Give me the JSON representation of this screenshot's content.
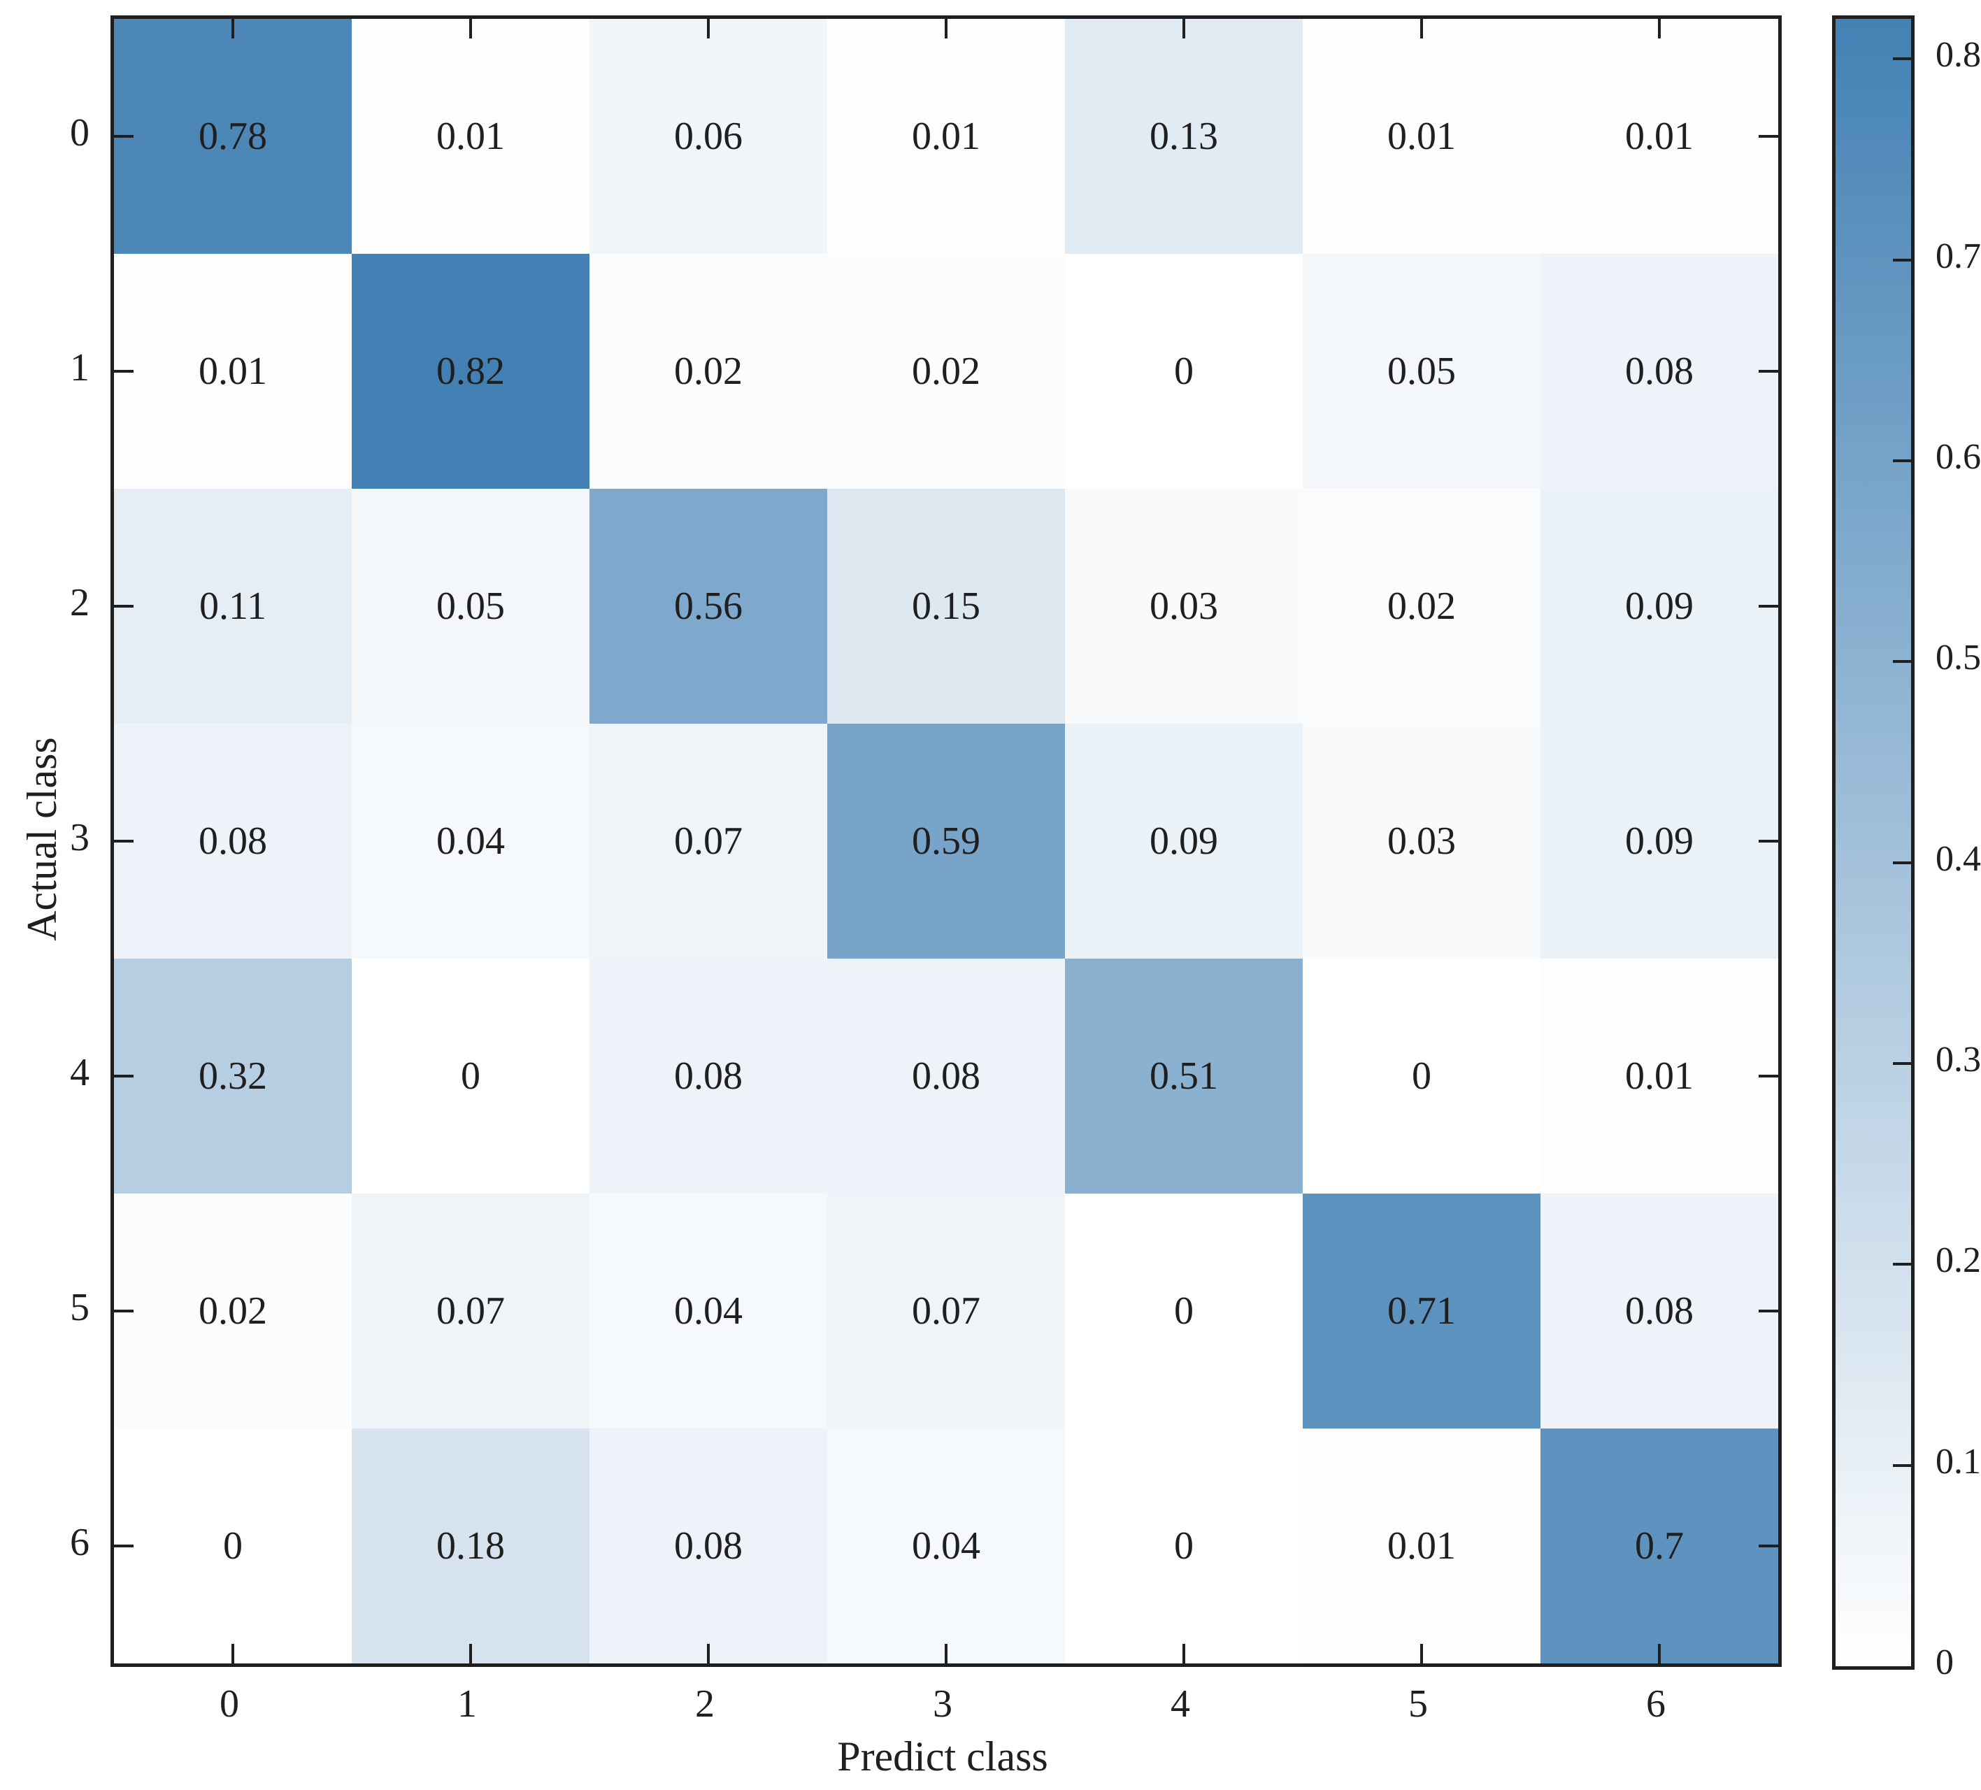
{
  "chart_data": {
    "type": "heatmap",
    "title": "",
    "xlabel": "Predict class",
    "ylabel": "Actual class",
    "x_ticklabels": [
      "0",
      "1",
      "2",
      "3",
      "4",
      "5",
      "6"
    ],
    "y_ticklabels": [
      "0",
      "1",
      "2",
      "3",
      "4",
      "5",
      "6"
    ],
    "matrix": [
      [
        0.78,
        0.01,
        0.06,
        0.01,
        0.13,
        0.01,
        0.01
      ],
      [
        0.01,
        0.82,
        0.02,
        0.02,
        0,
        0.05,
        0.08
      ],
      [
        0.11,
        0.05,
        0.56,
        0.15,
        0.03,
        0.02,
        0.09
      ],
      [
        0.08,
        0.04,
        0.07,
        0.59,
        0.09,
        0.03,
        0.09
      ],
      [
        0.32,
        0,
        0.08,
        0.08,
        0.51,
        0,
        0.01
      ],
      [
        0.02,
        0.07,
        0.04,
        0.07,
        0,
        0.71,
        0.08
      ],
      [
        0,
        0.18,
        0.08,
        0.04,
        0,
        0.01,
        0.7
      ]
    ],
    "cell_labels": [
      [
        "0.78",
        "0.01",
        "0.06",
        "0.01",
        "0.13",
        "0.01",
        "0.01"
      ],
      [
        "0.01",
        "0.82",
        "0.02",
        "0.02",
        "0",
        "0.05",
        "0.08"
      ],
      [
        "0.11",
        "0.05",
        "0.56",
        "0.15",
        "0.03",
        "0.02",
        "0.09"
      ],
      [
        "0.08",
        "0.04",
        "0.07",
        "0.59",
        "0.09",
        "0.03",
        "0.09"
      ],
      [
        "0.32",
        "0",
        "0.08",
        "0.08",
        "0.51",
        "0",
        "0.01"
      ],
      [
        "0.02",
        "0.07",
        "0.04",
        "0.07",
        "0",
        "0.71",
        "0.08"
      ],
      [
        "0",
        "0.18",
        "0.08",
        "0.04",
        "0",
        "0.01",
        "0.7"
      ]
    ],
    "colorbar": {
      "tick_labels": [
        "0",
        "0.1",
        "0.2",
        "0.3",
        "0.4",
        "0.5",
        "0.6",
        "0.7",
        "0.8"
      ],
      "tick_values": [
        0,
        0.1,
        0.2,
        0.3,
        0.4,
        0.5,
        0.6,
        0.7,
        0.8
      ],
      "vmin": 0,
      "vmax": 0.82,
      "color_low": "#ffffff",
      "color_high": "#4381b4"
    },
    "grid": false,
    "text_color": "#1f1f1f",
    "legend_position": "none"
  }
}
